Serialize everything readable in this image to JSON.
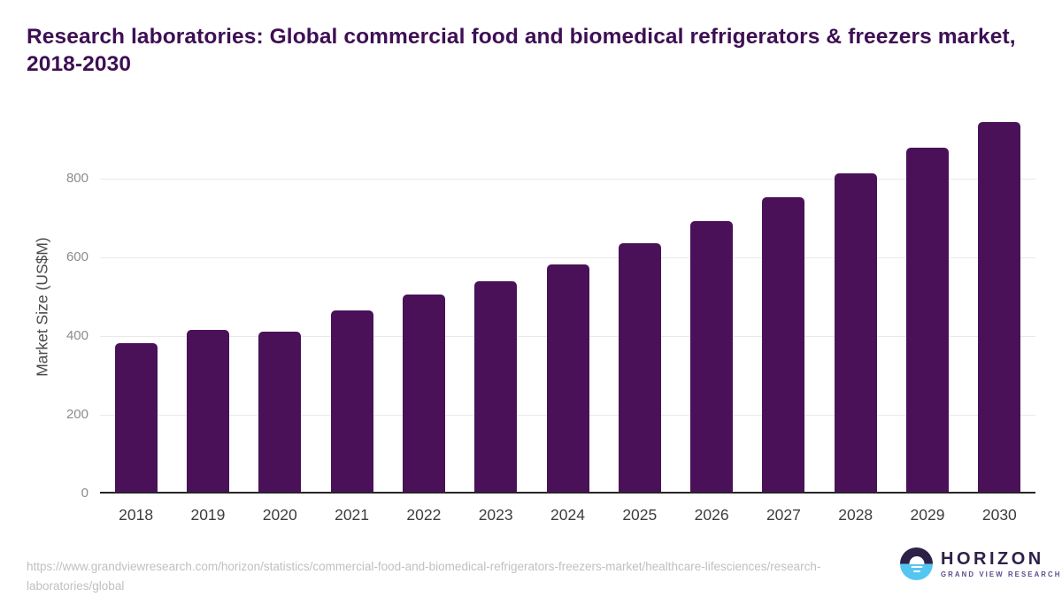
{
  "title": "Research laboratories: Global commercial food and biomedical refrigerators & freezers market, 2018-2030",
  "source_url": "https://www.grandviewresearch.com/horizon/statistics/commercial-food-and-biomedical-refrigerators-freezers-market/healthcare-lifesciences/research-laboratories/global",
  "logo": {
    "name": "HORIZON",
    "subtitle": "GRAND VIEW RESEARCH"
  },
  "colors": {
    "bar": "#4a1159",
    "title": "#3e0f54",
    "gridline": "#e9e9e9",
    "axis_line": "#262626",
    "ytick_label": "#8c8c8c",
    "xtick_label": "#3d3d3d",
    "url_text": "#c0c0c0",
    "logo_dark": "#2e2148",
    "logo_blue": "#54c6f0"
  },
  "chart_data": {
    "type": "bar",
    "title": "Research laboratories: Global commercial food and biomedical refrigerators & freezers market, 2018-2030",
    "categories": [
      "2018",
      "2019",
      "2020",
      "2021",
      "2022",
      "2023",
      "2024",
      "2025",
      "2026",
      "2027",
      "2028",
      "2029",
      "2030"
    ],
    "values": [
      378,
      412,
      406,
      460,
      501,
      535,
      578,
      630,
      687,
      747,
      808,
      873,
      939
    ],
    "xlabel": "",
    "ylabel": "Market Size (US$M)",
    "ylim": [
      0,
      950
    ],
    "yticks": [
      0,
      200,
      400,
      600,
      800
    ],
    "grid": true,
    "legend": false,
    "bar_color": "#4a1159"
  }
}
